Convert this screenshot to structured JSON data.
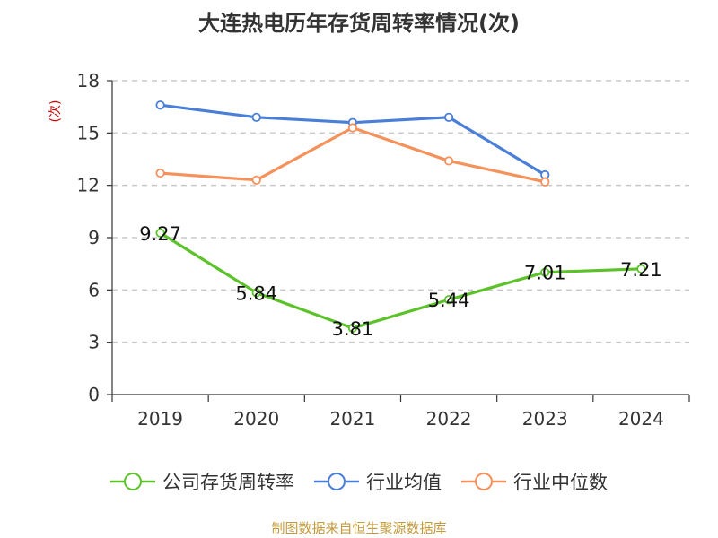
{
  "title": "大连热电历年存货周转率情况(次)",
  "source": "制图数据来自恒生聚源数据库",
  "chart_data": {
    "type": "line",
    "categories": [
      "2019",
      "2020",
      "2021",
      "2022",
      "2023",
      "2024"
    ],
    "ylabel": "(次)",
    "ylim": [
      0,
      18
    ],
    "yticks": [
      0,
      3,
      6,
      9,
      12,
      15,
      18
    ],
    "grid": true,
    "legend_position": "bottom",
    "series": [
      {
        "name": "公司存货周转率",
        "color": "#5cc22a",
        "values": [
          9.27,
          5.84,
          3.81,
          5.44,
          7.01,
          7.21
        ],
        "labels": [
          "9.27",
          "5.84",
          "3.81",
          "5.44",
          "7.01",
          "7.21"
        ]
      },
      {
        "name": "行业均值",
        "color": "#4a7fd8",
        "values": [
          16.6,
          15.9,
          15.6,
          15.9,
          12.6,
          null
        ]
      },
      {
        "name": "行业中位数",
        "color": "#f5915a",
        "values": [
          12.7,
          12.3,
          15.3,
          13.4,
          12.2,
          null
        ]
      }
    ]
  }
}
